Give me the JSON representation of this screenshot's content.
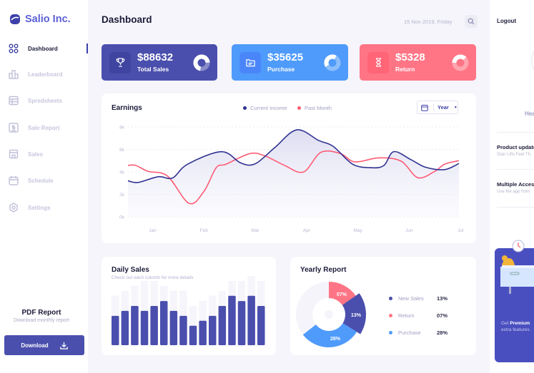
{
  "sidebar": {
    "brand": "Salio Inc.",
    "items": [
      {
        "label": "Dashboard",
        "icon": "dashboard-icon",
        "active": true
      },
      {
        "label": "Leaderboard",
        "icon": "bar-chart-icon"
      },
      {
        "label": "Spredsheets",
        "icon": "table-icon"
      },
      {
        "label": "Sale Report",
        "icon": "dollar-report-icon"
      },
      {
        "label": "Sales",
        "icon": "store-icon"
      },
      {
        "label": "Schedule",
        "icon": "calendar-icon"
      },
      {
        "label": "Settings",
        "icon": "gear-icon"
      }
    ],
    "pdf_title": "PDF Report",
    "pdf_subtitle": "Download monthly report",
    "download_label": "Download"
  },
  "header": {
    "title": "Dashboard",
    "date": "15 Nov 2019, Friday"
  },
  "stats": [
    {
      "value": "$88632",
      "label": "Total Sales",
      "icon": "trophy-icon",
      "color": "#4a4fad"
    },
    {
      "value": "$35625",
      "label": "Purchase",
      "icon": "folder-icon",
      "color": "#4f9bfb"
    },
    {
      "value": "$5328",
      "label": "Return",
      "icon": "hourglass-icon",
      "color": "#ff7585"
    }
  ],
  "earnings": {
    "title": "Earnings",
    "period": "Year"
  },
  "chart_data": [
    {
      "type": "area",
      "title": "Earnings",
      "x_ticks": [
        "Jan",
        "Feb",
        "Mar",
        "Apr",
        "May",
        "Jun",
        "Jul"
      ],
      "y_ticks": [
        "0k",
        "2k",
        "4k",
        "6k",
        "8k"
      ],
      "ylim": [
        0,
        8
      ],
      "xlim": [
        -0.48,
        5.97
      ],
      "grid": "horizontal dashed",
      "legend": "top-center",
      "series": [
        {
          "name": "Current Income",
          "color": "#2f3291",
          "x": [
            -0.48,
            -0.28,
            0.11,
            0.39,
            0.68,
            1.34,
            1.72,
            2.0,
            2.38,
            2.81,
            3.24,
            3.52,
            3.9,
            4.27,
            4.51,
            4.7,
            5.03,
            5.32,
            5.69,
            5.97
          ],
          "y": [
            3.2,
            3.06,
            3.57,
            3.46,
            4.68,
            5.8,
            4.79,
            4.72,
            6.16,
            7.74,
            6.79,
            6.27,
            4.68,
            4.37,
            4.58,
            5.8,
            5.1,
            4.41,
            4.2,
            4.75
          ]
        },
        {
          "name": "Past Month",
          "color": "#ff5c74",
          "x": [
            -0.48,
            -0.33,
            -0.09,
            0.29,
            0.71,
            1.0,
            1.24,
            1.43,
            1.9,
            2.19,
            2.57,
            2.94,
            3.28,
            3.66,
            3.94,
            4.41,
            4.84,
            5.17,
            5.5,
            5.69,
            5.97
          ],
          "y": [
            4.58,
            4.58,
            4.05,
            3.63,
            1.2,
            2.26,
            4.37,
            4.68,
            5.63,
            5.42,
            4.58,
            3.99,
            5.74,
            5.63,
            4.89,
            5.25,
            4.96,
            3.48,
            4.05,
            4.68,
            5.0
          ]
        }
      ]
    },
    {
      "type": "bar",
      "title": "Daily Sales",
      "subtitle": "Check out each columb for more details",
      "values": [
        107,
        125,
        143,
        125,
        143,
        161,
        125,
        107,
        71,
        89,
        107,
        143,
        180,
        161,
        180,
        143
      ],
      "background_values": [
        180,
        198,
        216,
        234,
        234,
        216,
        198,
        198,
        143,
        161,
        180,
        198,
        234,
        234,
        252,
        234
      ],
      "color": "#4a4fad"
    },
    {
      "type": "pie",
      "title": "Yearly Report",
      "slices": [
        {
          "name": "New Sales",
          "value": "13%",
          "color": "#4a4fad"
        },
        {
          "name": "Return",
          "value": "07%",
          "color": "#ff7585"
        },
        {
          "name": "Purchase",
          "value": "28%",
          "color": "#4f9bfb"
        }
      ]
    }
  ],
  "right": {
    "logout": "Logout",
    "name_partial": "Hea",
    "items": [
      {
        "title": "Product update",
        "text": "Stair Lifts Feel Th"
      },
      {
        "title": "Multiple Acces",
        "text": "Use the app from"
      }
    ],
    "promo_prefix": "Get ",
    "promo_bold": "Premium",
    "promo_line2": "extra features"
  }
}
